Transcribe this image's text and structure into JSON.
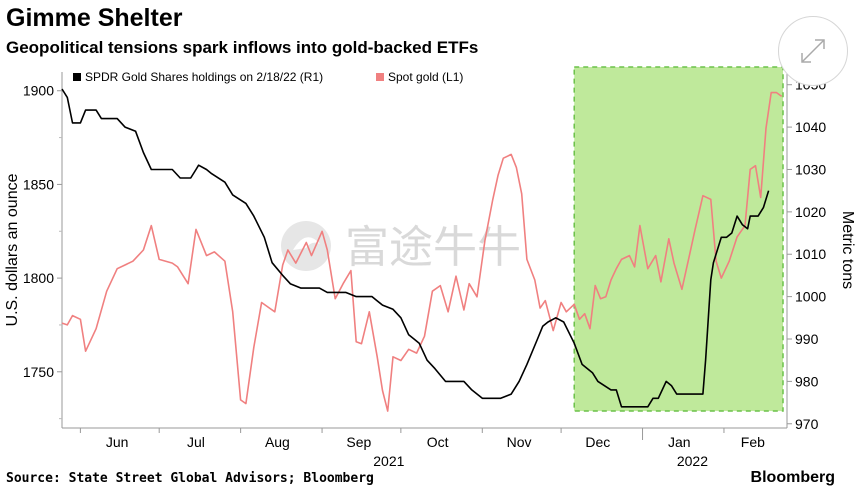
{
  "header": {
    "title": "Gimme Shelter",
    "subtitle": "Geopolitical tensions spark inflows into gold-backed ETFs"
  },
  "footer": {
    "source": "Source: State Street Global Advisors; Bloomberg",
    "brand": "Bloomberg"
  },
  "watermark": {
    "text": "富途牛牛"
  },
  "chart_data": {
    "type": "line",
    "title": "Gimme Shelter",
    "subtitle": "Geopolitical tensions spark inflows into gold-backed ETFs",
    "x_labels": [
      "Jun",
      "Jul",
      "Aug",
      "Sep",
      "Oct",
      "Nov",
      "Dec",
      "Jan",
      "Feb"
    ],
    "year_labels": [
      "2021",
      "2022"
    ],
    "x_range": [
      "2021-05-25",
      "2022-02-25"
    ],
    "left_axis": {
      "label": "U.S. dollars an ounce",
      "ylim": [
        1720,
        1910
      ],
      "ticks": [
        1750,
        1800,
        1850,
        1900
      ]
    },
    "right_axis": {
      "label": "Metric tons",
      "ylim": [
        969,
        1053
      ],
      "ticks": [
        970,
        980,
        990,
        1000,
        1010,
        1020,
        1030,
        1040,
        1050
      ]
    },
    "grid": false,
    "legend": "top-left",
    "highlight": {
      "start": "2021-12-06",
      "end": "2022-02-25",
      "color": "#a8e063"
    },
    "series": [
      {
        "name": "SPDR Gold Shares holdings on 2/18/22 (R1)",
        "axis": "right",
        "color": "#000000",
        "points": [
          [
            "2021-05-25",
            1049
          ],
          [
            "2021-05-27",
            1047
          ],
          [
            "2021-05-29",
            1041
          ],
          [
            "2021-06-01",
            1041
          ],
          [
            "2021-06-03",
            1044
          ],
          [
            "2021-06-07",
            1044
          ],
          [
            "2021-06-09",
            1042
          ],
          [
            "2021-06-15",
            1042
          ],
          [
            "2021-06-18",
            1040
          ],
          [
            "2021-06-22",
            1039
          ],
          [
            "2021-06-25",
            1034
          ],
          [
            "2021-06-28",
            1030
          ],
          [
            "2021-07-06",
            1030
          ],
          [
            "2021-07-09",
            1028
          ],
          [
            "2021-07-13",
            1028
          ],
          [
            "2021-07-15",
            1030
          ],
          [
            "2021-07-16",
            1031
          ],
          [
            "2021-07-19",
            1030
          ],
          [
            "2021-07-21",
            1029
          ],
          [
            "2021-07-26",
            1027
          ],
          [
            "2021-07-29",
            1024
          ],
          [
            "2021-08-03",
            1022
          ],
          [
            "2021-08-06",
            1019
          ],
          [
            "2021-08-10",
            1014
          ],
          [
            "2021-08-13",
            1008
          ],
          [
            "2021-08-17",
            1005
          ],
          [
            "2021-08-20",
            1003
          ],
          [
            "2021-08-24",
            1002
          ],
          [
            "2021-08-31",
            1002
          ],
          [
            "2021-09-03",
            1001
          ],
          [
            "2021-09-10",
            1001
          ],
          [
            "2021-09-14",
            1000
          ],
          [
            "2021-09-20",
            1000
          ],
          [
            "2021-09-22",
            999
          ],
          [
            "2021-09-24",
            998
          ],
          [
            "2021-09-28",
            997
          ],
          [
            "2021-10-01",
            995
          ],
          [
            "2021-10-04",
            991
          ],
          [
            "2021-10-06",
            990
          ],
          [
            "2021-10-08",
            989
          ],
          [
            "2021-10-11",
            985
          ],
          [
            "2021-10-14",
            983
          ],
          [
            "2021-10-18",
            980
          ],
          [
            "2021-10-21",
            980
          ],
          [
            "2021-10-25",
            980
          ],
          [
            "2021-10-28",
            978
          ],
          [
            "2021-11-01",
            976
          ],
          [
            "2021-11-08",
            976
          ],
          [
            "2021-11-12",
            977
          ],
          [
            "2021-11-15",
            980
          ],
          [
            "2021-11-18",
            984
          ],
          [
            "2021-11-22",
            990
          ],
          [
            "2021-11-24",
            993
          ],
          [
            "2021-11-26",
            994
          ],
          [
            "2021-11-29",
            995
          ],
          [
            "2021-12-02",
            994
          ],
          [
            "2021-12-06",
            989
          ],
          [
            "2021-12-09",
            984
          ],
          [
            "2021-12-13",
            982
          ],
          [
            "2021-12-15",
            980
          ],
          [
            "2021-12-20",
            978
          ],
          [
            "2021-12-22",
            978
          ],
          [
            "2021-12-24",
            974
          ],
          [
            "2021-12-27",
            974
          ],
          [
            "2021-12-31",
            974
          ],
          [
            "2022-01-03",
            974
          ],
          [
            "2022-01-05",
            976
          ],
          [
            "2022-01-07",
            976
          ],
          [
            "2022-01-10",
            980
          ],
          [
            "2022-01-12",
            979
          ],
          [
            "2022-01-14",
            977
          ],
          [
            "2022-01-18",
            977
          ],
          [
            "2022-01-21",
            977
          ],
          [
            "2022-01-24",
            977
          ],
          [
            "2022-01-25",
            985
          ],
          [
            "2022-01-27",
            1004
          ],
          [
            "2022-01-28",
            1008
          ],
          [
            "2022-01-31",
            1014
          ],
          [
            "2022-02-02",
            1014
          ],
          [
            "2022-02-04",
            1015
          ],
          [
            "2022-02-06",
            1019
          ],
          [
            "2022-02-08",
            1017
          ],
          [
            "2022-02-10",
            1016
          ],
          [
            "2022-02-11",
            1019
          ],
          [
            "2022-02-14",
            1019
          ],
          [
            "2022-02-16",
            1021
          ],
          [
            "2022-02-18",
            1025
          ]
        ]
      },
      {
        "name": "Spot gold (L1)",
        "axis": "left",
        "color": "#f08080",
        "points": [
          [
            "2021-05-25",
            1776
          ],
          [
            "2021-05-27",
            1775
          ],
          [
            "2021-05-29",
            1780
          ],
          [
            "2021-06-01",
            1778
          ],
          [
            "2021-06-03",
            1761
          ],
          [
            "2021-06-07",
            1773
          ],
          [
            "2021-06-11",
            1793
          ],
          [
            "2021-06-15",
            1805
          ],
          [
            "2021-06-18",
            1807
          ],
          [
            "2021-06-21",
            1809
          ],
          [
            "2021-06-25",
            1815
          ],
          [
            "2021-06-28",
            1828
          ],
          [
            "2021-07-01",
            1810
          ],
          [
            "2021-07-06",
            1808
          ],
          [
            "2021-07-08",
            1806
          ],
          [
            "2021-07-12",
            1797
          ],
          [
            "2021-07-15",
            1826
          ],
          [
            "2021-07-19",
            1812
          ],
          [
            "2021-07-22",
            1814
          ],
          [
            "2021-07-26",
            1809
          ],
          [
            "2021-07-29",
            1782
          ],
          [
            "2021-08-01",
            1735
          ],
          [
            "2021-08-03",
            1733
          ],
          [
            "2021-08-06",
            1763
          ],
          [
            "2021-08-09",
            1787
          ],
          [
            "2021-08-12",
            1784
          ],
          [
            "2021-08-14",
            1782
          ],
          [
            "2021-08-17",
            1807
          ],
          [
            "2021-08-19",
            1815
          ],
          [
            "2021-08-22",
            1808
          ],
          [
            "2021-08-26",
            1819
          ],
          [
            "2021-08-28",
            1812
          ],
          [
            "2021-09-01",
            1825
          ],
          [
            "2021-09-03",
            1815
          ],
          [
            "2021-09-06",
            1789
          ],
          [
            "2021-09-09",
            1797
          ],
          [
            "2021-09-12",
            1804
          ],
          [
            "2021-09-14",
            1766
          ],
          [
            "2021-09-16",
            1765
          ],
          [
            "2021-09-19",
            1782
          ],
          [
            "2021-09-22",
            1758
          ],
          [
            "2021-09-24",
            1740
          ],
          [
            "2021-09-26",
            1729
          ],
          [
            "2021-09-28",
            1758
          ],
          [
            "2021-10-01",
            1756
          ],
          [
            "2021-10-04",
            1762
          ],
          [
            "2021-10-07",
            1760
          ],
          [
            "2021-10-10",
            1769
          ],
          [
            "2021-10-13",
            1793
          ],
          [
            "2021-10-16",
            1796
          ],
          [
            "2021-10-19",
            1782
          ],
          [
            "2021-10-22",
            1801
          ],
          [
            "2021-10-25",
            1783
          ],
          [
            "2021-10-27",
            1797
          ],
          [
            "2021-10-30",
            1790
          ],
          [
            "2021-11-02",
            1820
          ],
          [
            "2021-11-05",
            1842
          ],
          [
            "2021-11-07",
            1855
          ],
          [
            "2021-11-09",
            1864
          ],
          [
            "2021-11-12",
            1866
          ],
          [
            "2021-11-14",
            1859
          ],
          [
            "2021-11-16",
            1845
          ],
          [
            "2021-11-18",
            1810
          ],
          [
            "2021-11-21",
            1799
          ],
          [
            "2021-11-23",
            1784
          ],
          [
            "2021-11-25",
            1788
          ],
          [
            "2021-11-28",
            1772
          ],
          [
            "2021-12-01",
            1787
          ],
          [
            "2021-12-03",
            1782
          ],
          [
            "2021-12-06",
            1786
          ],
          [
            "2021-12-08",
            1778
          ],
          [
            "2021-12-10",
            1781
          ],
          [
            "2021-12-12",
            1773
          ],
          [
            "2021-12-14",
            1796
          ],
          [
            "2021-12-16",
            1789
          ],
          [
            "2021-12-18",
            1790
          ],
          [
            "2021-12-20",
            1799
          ],
          [
            "2021-12-22",
            1805
          ],
          [
            "2021-12-24",
            1810
          ],
          [
            "2021-12-27",
            1812
          ],
          [
            "2021-12-29",
            1806
          ],
          [
            "2021-12-31",
            1828
          ],
          [
            "2022-01-03",
            1805
          ],
          [
            "2022-01-06",
            1812
          ],
          [
            "2022-01-08",
            1798
          ],
          [
            "2022-01-11",
            1821
          ],
          [
            "2022-01-13",
            1808
          ],
          [
            "2022-01-16",
            1794
          ],
          [
            "2022-01-19",
            1813
          ],
          [
            "2022-01-21",
            1826
          ],
          [
            "2022-01-24",
            1844
          ],
          [
            "2022-01-27",
            1842
          ],
          [
            "2022-01-29",
            1809
          ],
          [
            "2022-01-31",
            1800
          ],
          [
            "2022-02-03",
            1809
          ],
          [
            "2022-02-06",
            1822
          ],
          [
            "2022-02-09",
            1828
          ],
          [
            "2022-02-11",
            1858
          ],
          [
            "2022-02-13",
            1860
          ],
          [
            "2022-02-15",
            1843
          ],
          [
            "2022-02-17",
            1880
          ],
          [
            "2022-02-19",
            1899
          ],
          [
            "2022-02-21",
            1899
          ],
          [
            "2022-02-23",
            1897
          ]
        ]
      }
    ]
  }
}
